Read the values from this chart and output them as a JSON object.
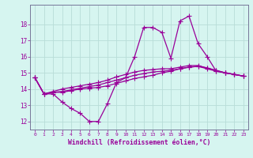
{
  "xlabel": "Windchill (Refroidissement éolien,°C)",
  "background_color": "#d6f5f0",
  "grid_color": "#b8ddd8",
  "line_color": "#990099",
  "spine_color": "#777799",
  "xlim": [
    -0.5,
    23.5
  ],
  "ylim": [
    11.5,
    19.2
  ],
  "xticks": [
    0,
    1,
    2,
    3,
    4,
    5,
    6,
    7,
    8,
    9,
    10,
    11,
    12,
    13,
    14,
    15,
    16,
    17,
    18,
    19,
    20,
    21,
    22,
    23
  ],
  "yticks": [
    12,
    13,
    14,
    15,
    16,
    17,
    18
  ],
  "series": [
    [
      14.7,
      13.7,
      13.7,
      13.2,
      12.8,
      12.5,
      12.0,
      12.0,
      13.1,
      14.4,
      14.7,
      16.0,
      17.8,
      17.8,
      17.5,
      15.9,
      18.2,
      18.5,
      16.8,
      16.0,
      15.1,
      15.0,
      14.9,
      14.8
    ],
    [
      14.7,
      13.7,
      13.8,
      13.8,
      13.9,
      14.0,
      14.05,
      14.1,
      14.2,
      14.35,
      14.5,
      14.65,
      14.75,
      14.85,
      15.0,
      15.1,
      15.25,
      15.35,
      15.4,
      15.25,
      15.1,
      15.0,
      14.9,
      14.8
    ],
    [
      14.7,
      13.7,
      13.8,
      13.85,
      13.95,
      14.05,
      14.15,
      14.25,
      14.4,
      14.55,
      14.7,
      14.85,
      14.95,
      15.05,
      15.1,
      15.15,
      15.25,
      15.35,
      15.4,
      15.3,
      15.15,
      15.0,
      14.9,
      14.8
    ],
    [
      14.7,
      13.7,
      13.85,
      14.0,
      14.1,
      14.2,
      14.3,
      14.4,
      14.55,
      14.75,
      14.9,
      15.05,
      15.15,
      15.2,
      15.25,
      15.25,
      15.35,
      15.45,
      15.45,
      15.3,
      15.15,
      15.0,
      14.9,
      14.8
    ]
  ],
  "marker": "+",
  "markersize": 4,
  "linewidth": 0.9,
  "tick_fontsize": 4.5,
  "ylabel_fontsize": 5.5,
  "xlabel_fontsize": 5.8
}
